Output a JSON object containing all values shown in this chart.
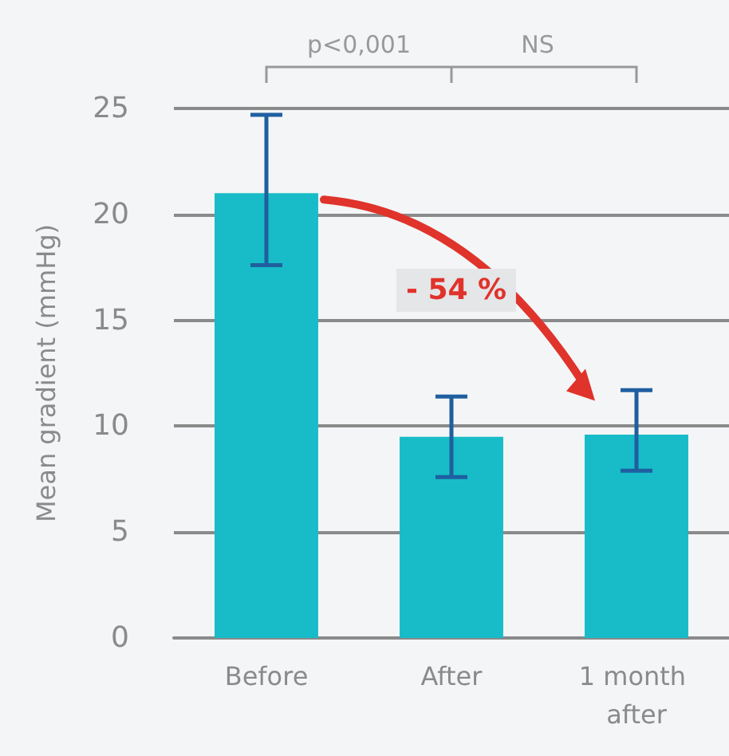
{
  "chart_data": {
    "type": "bar",
    "ylabel": "Mean gradient (mmHg)",
    "categories": [
      "Before",
      "After",
      "1 month after"
    ],
    "values": [
      21,
      9.5,
      9.6
    ],
    "errors": [
      [
        17.6,
        24.7
      ],
      [
        7.6,
        11.4
      ],
      [
        7.9,
        11.7
      ]
    ],
    "color": "#17bcc8",
    "ylim": [
      0,
      25
    ],
    "yticks": [
      0,
      5,
      10,
      15,
      20,
      25
    ],
    "grid": "y",
    "annotations": [
      "p<0,001",
      "NS",
      "- 54 %"
    ]
  }
}
